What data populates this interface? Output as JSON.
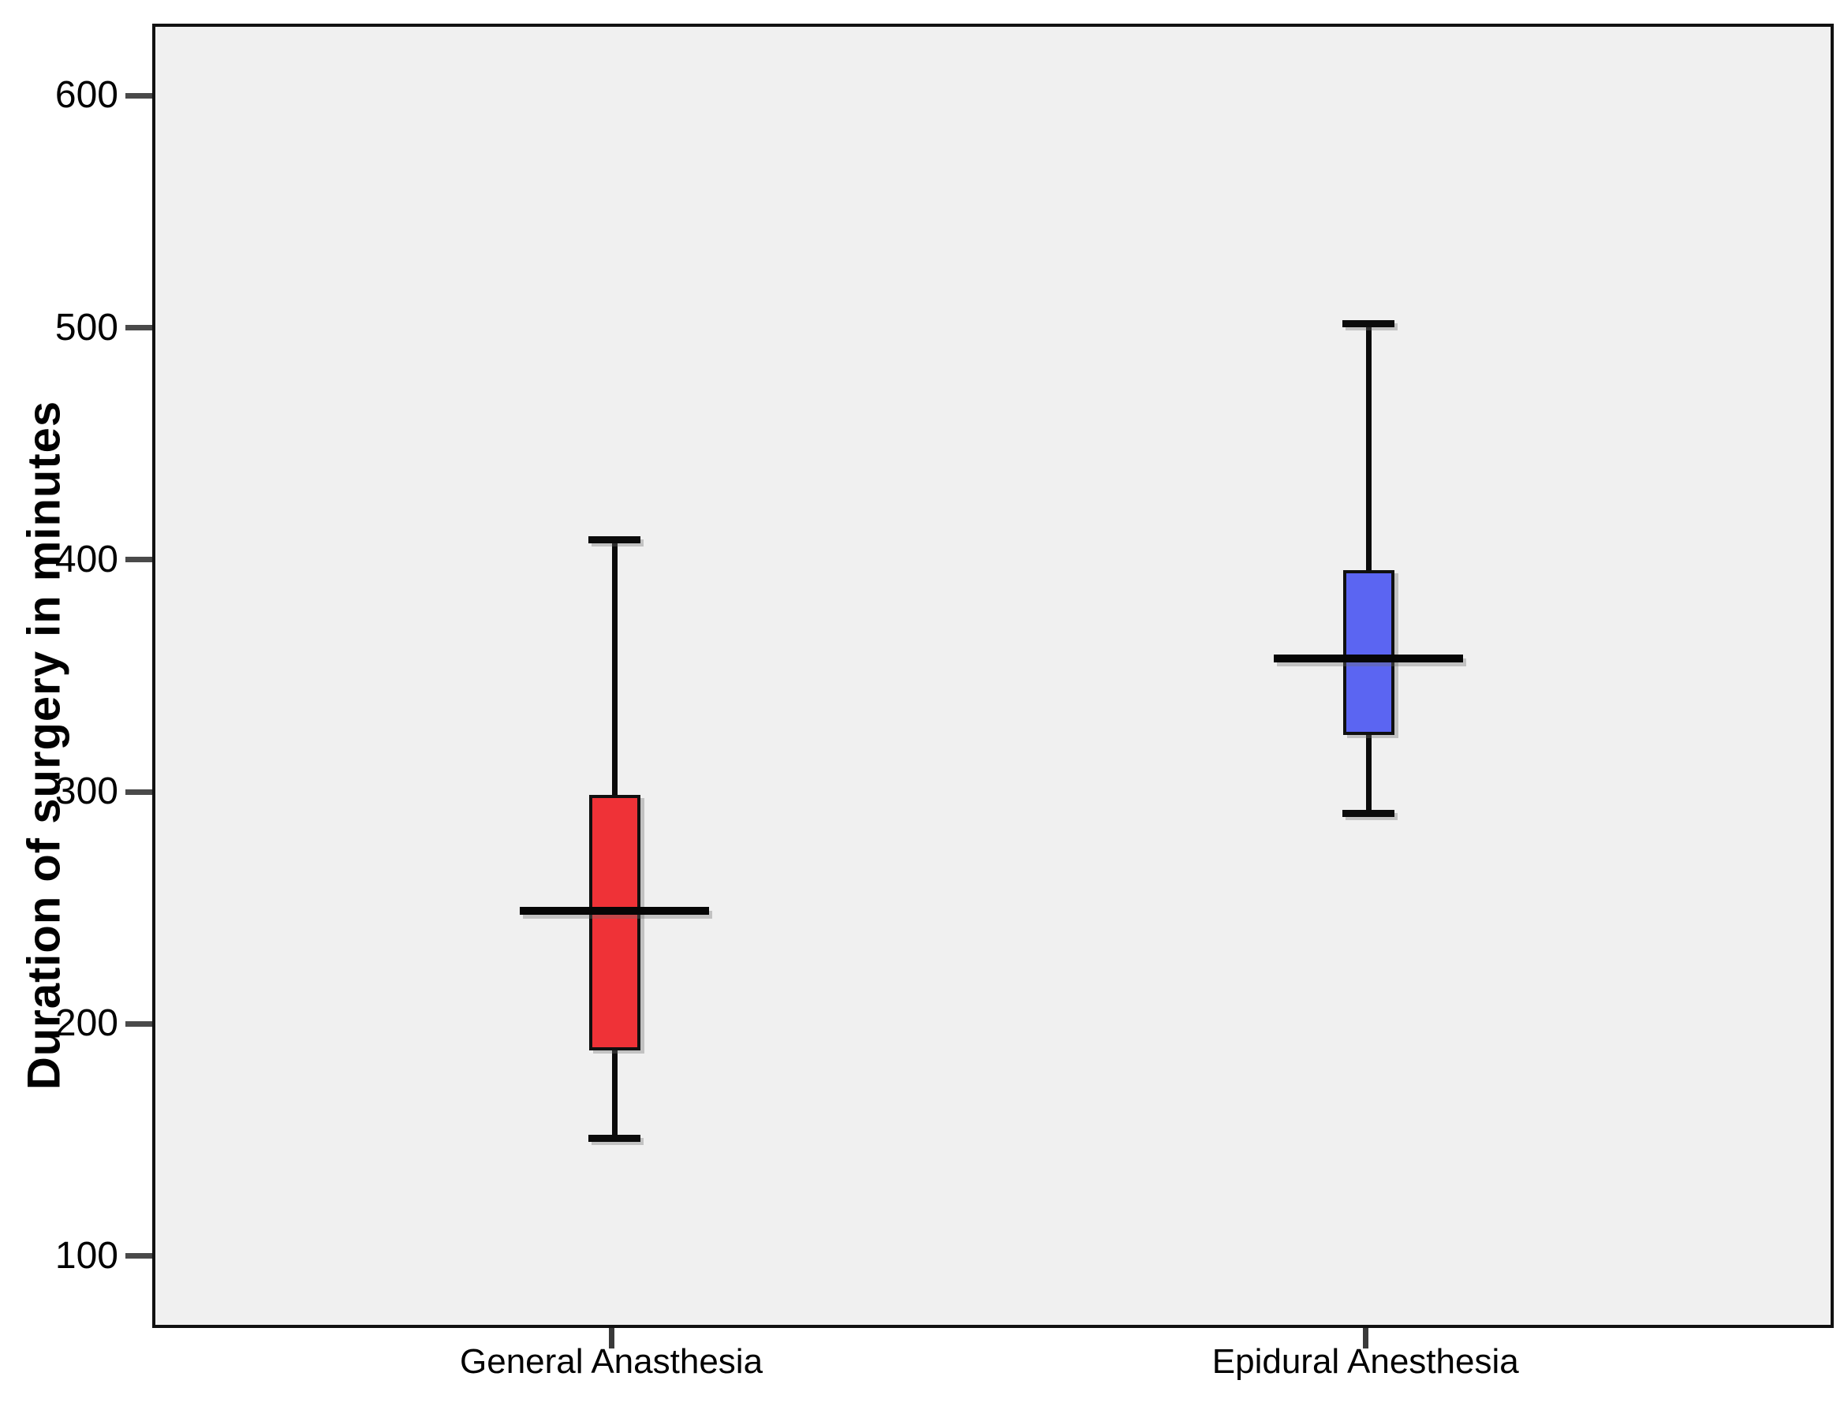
{
  "chart_data": {
    "type": "boxplot",
    "title": "",
    "xlabel": "",
    "ylabel": "Duration of surgery in minutes",
    "ylim": [
      69,
      631
    ],
    "yticks": [
      600,
      500,
      400,
      300,
      200,
      100
    ],
    "grid": false,
    "legend": "none",
    "plot_background": "#f0f0f0",
    "categories": [
      "General Anasthesia",
      "Epidural Anesthesia"
    ],
    "series": [
      {
        "label": "General Anasthesia",
        "color": "#ef3237",
        "x_frac": 0.273,
        "whisker_low": 152,
        "q1": 190,
        "median": 250,
        "q3": 300,
        "whisker_high": 410
      },
      {
        "label": "Epidural Anesthesia",
        "color": "#5b65f2",
        "x_frac": 0.7215,
        "whisker_low": 292,
        "q1": 326,
        "median": 359,
        "q3": 397,
        "whisker_high": 503
      }
    ]
  }
}
